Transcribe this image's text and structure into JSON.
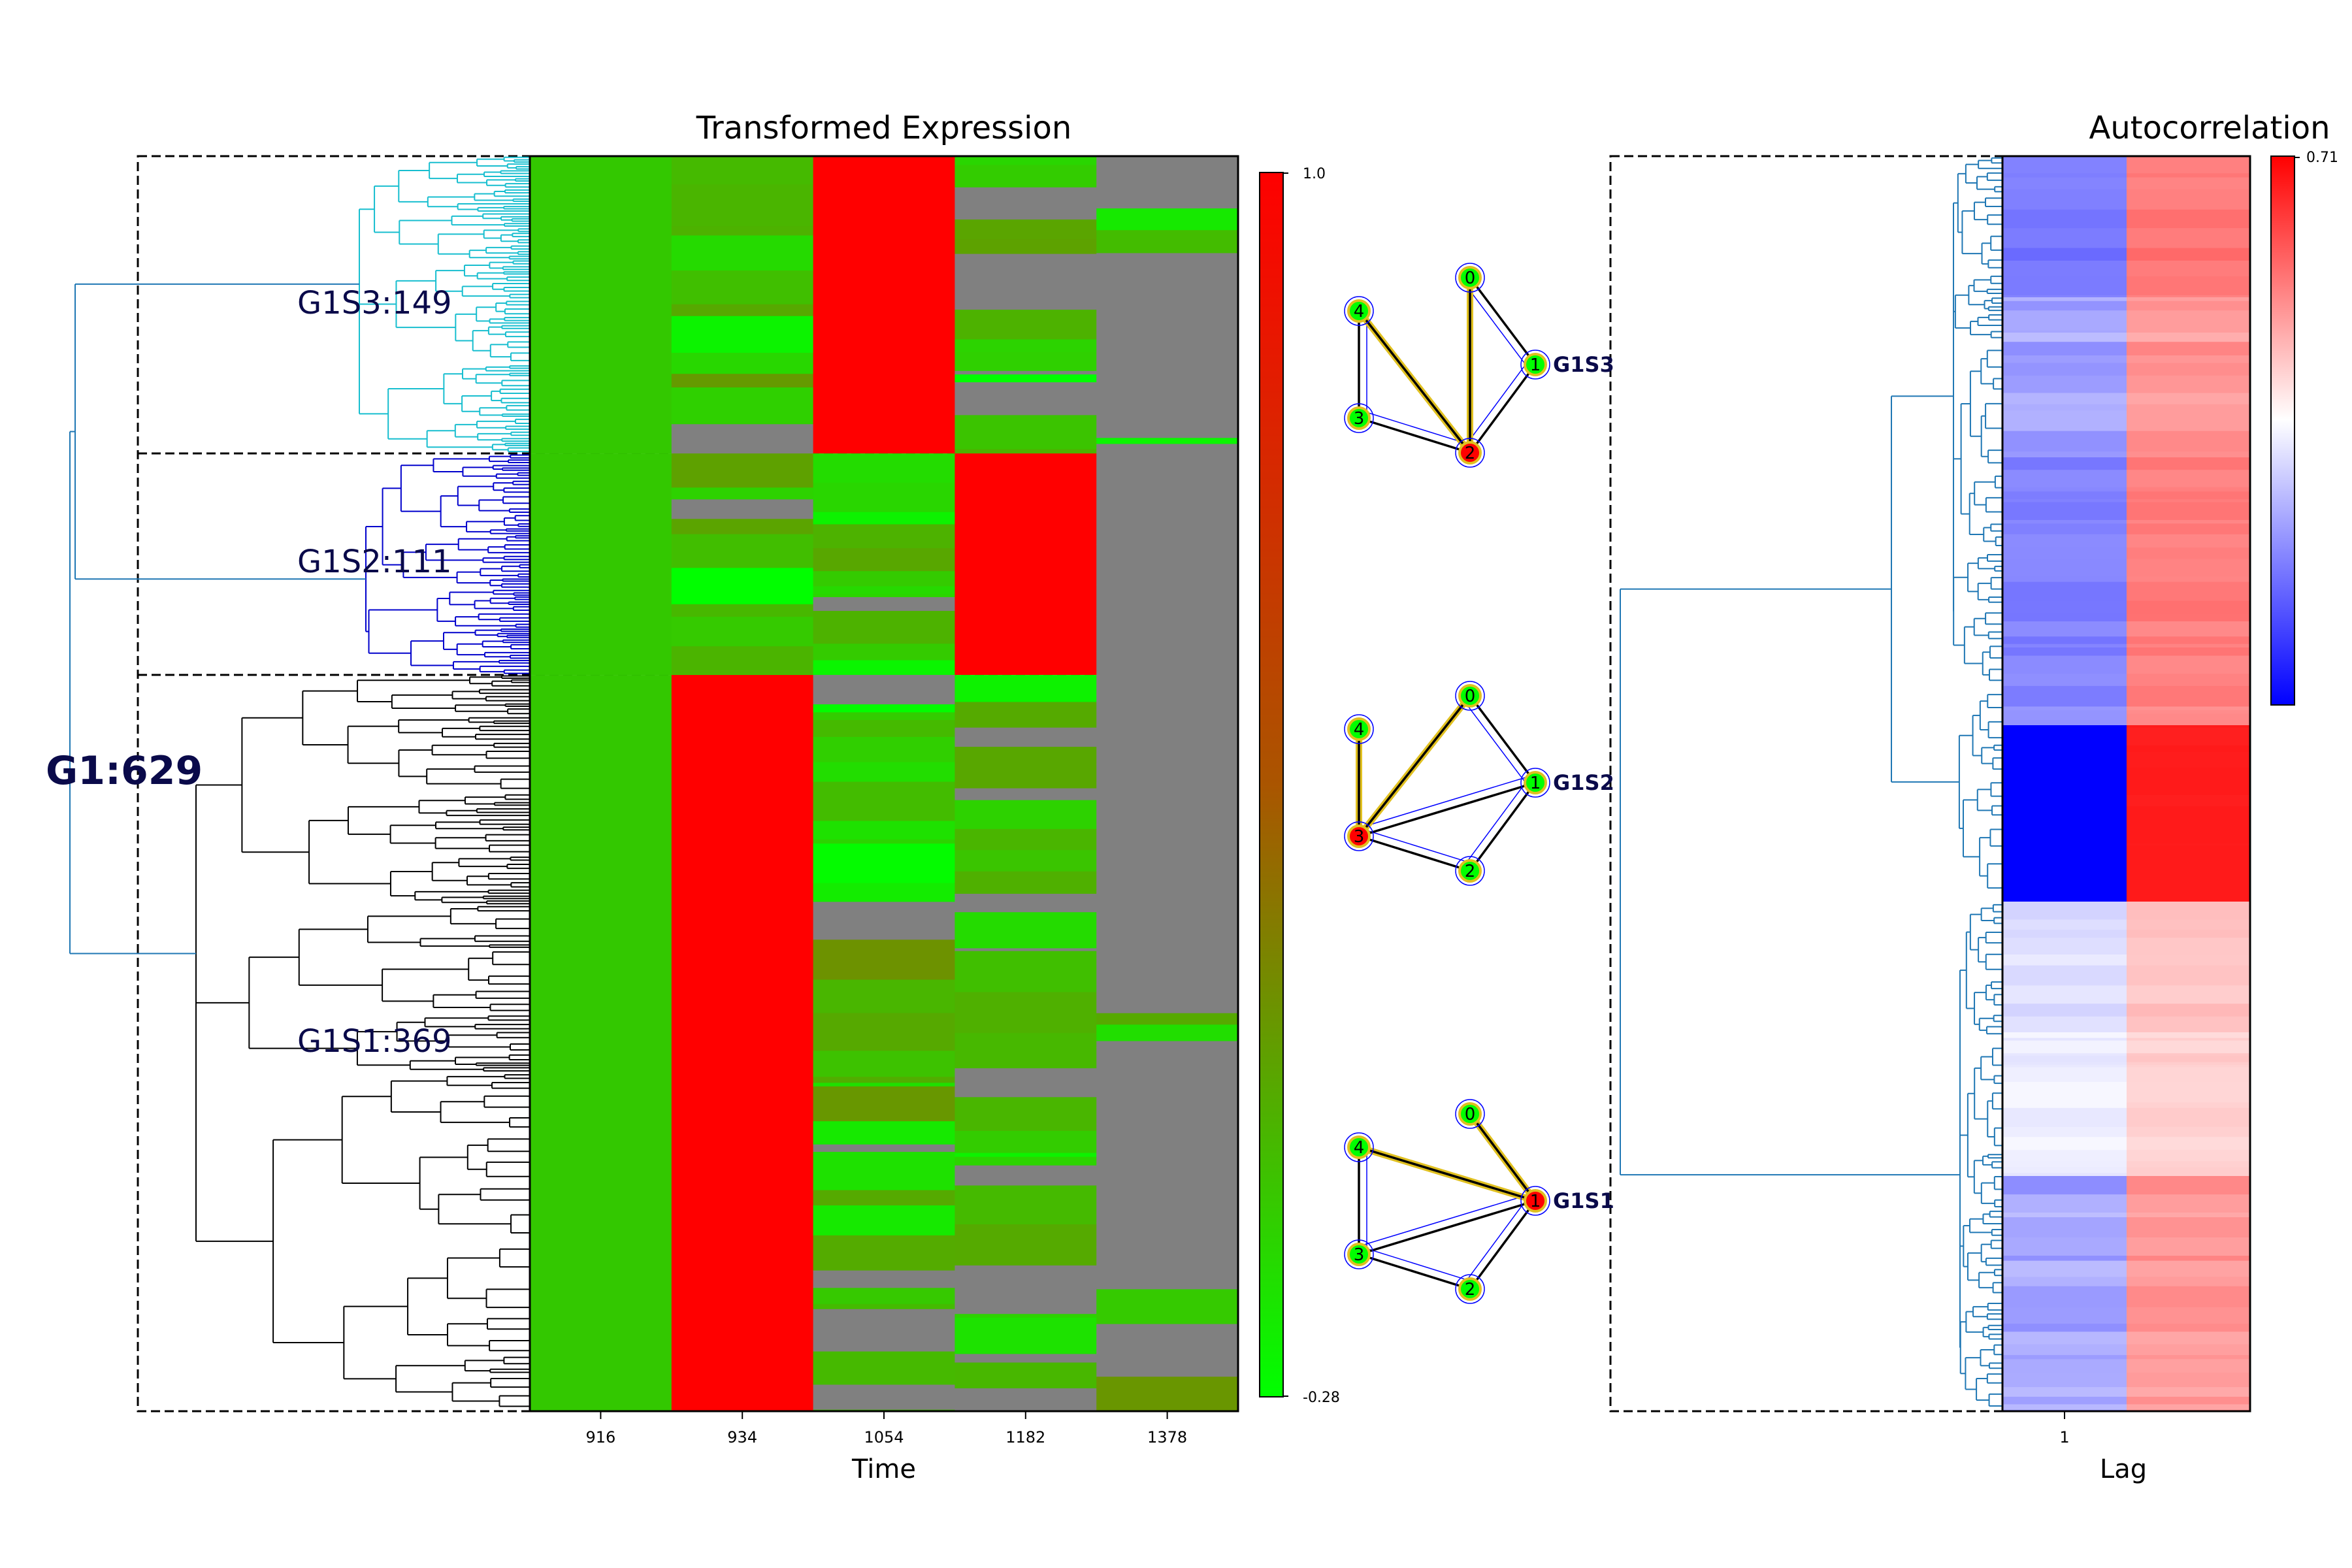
{
  "chart_data": [
    {
      "type": "heatmap",
      "title": "Transformed Expression",
      "xlabel": "Time",
      "ylabel": "",
      "x_ticks": [
        "916",
        "934",
        "1054",
        "1182",
        "1378"
      ],
      "colorbar": {
        "min": -0.28,
        "max": 1.0,
        "min_label": "-0.28",
        "max_label": "1.0",
        "low_color": "#00ff00",
        "high_color": "#ff0000",
        "missing_color": "#808080"
      },
      "clusters": [
        {
          "label": "G1S3:149",
          "rows": 149,
          "dominant_column": "1054"
        },
        {
          "label": "G1S2:111",
          "rows": 111,
          "dominant_column": "1182"
        },
        {
          "label": "G1S1:369",
          "rows": 369,
          "dominant_column": "934"
        }
      ],
      "parent_cluster": "G1:629",
      "dendrogram_colors": {
        "G1S3:149": "#17becf",
        "G1S2:111": "#0000cc",
        "G1S1:369": "#000000",
        "root": "#1f77b4"
      }
    },
    {
      "type": "network",
      "graphs": [
        {
          "label": "G1S3",
          "nodes": [
            "0",
            "1",
            "2",
            "3",
            "4"
          ],
          "highlight_node": "2",
          "edges": [
            [
              "0",
              "1"
            ],
            [
              "1",
              "2"
            ],
            [
              "0",
              "2"
            ],
            [
              "2",
              "3"
            ],
            [
              "2",
              "4"
            ],
            [
              "3",
              "4"
            ]
          ],
          "highlight_edges": [
            [
              "0",
              "2"
            ],
            [
              "2",
              "4"
            ]
          ]
        },
        {
          "label": "G1S2",
          "nodes": [
            "0",
            "1",
            "2",
            "3",
            "4"
          ],
          "highlight_node": "3",
          "edges": [
            [
              "0",
              "1"
            ],
            [
              "1",
              "2"
            ],
            [
              "0",
              "3"
            ],
            [
              "1",
              "3"
            ],
            [
              "2",
              "3"
            ],
            [
              "3",
              "4"
            ]
          ],
          "highlight_edges": [
            [
              "0",
              "3"
            ],
            [
              "3",
              "4"
            ]
          ]
        },
        {
          "label": "G1S1",
          "nodes": [
            "0",
            "1",
            "2",
            "3",
            "4"
          ],
          "highlight_node": "1",
          "edges": [
            [
              "0",
              "1"
            ],
            [
              "1",
              "2"
            ],
            [
              "2",
              "3"
            ],
            [
              "1",
              "3"
            ],
            [
              "3",
              "4"
            ],
            [
              "1",
              "4"
            ]
          ],
          "highlight_edges": [
            [
              "0",
              "1"
            ],
            [
              "1",
              "4"
            ]
          ]
        }
      ],
      "colors": {
        "node": "#00ff00",
        "highlight_node": "#ff0000",
        "node_outline": "#e0c020",
        "highlight_edge": "#e0c020",
        "edge": "#000000",
        "halo": "#0000ff"
      }
    },
    {
      "type": "heatmap",
      "title": "Autocorrelation",
      "xlabel": "Lag",
      "x_ticks": [
        "1"
      ],
      "colorbar": {
        "max": 0.71,
        "max_label": "0.71",
        "low_color": "#0000ff",
        "mid_color": "#ffffff",
        "high_color": "#ff0000"
      }
    }
  ]
}
